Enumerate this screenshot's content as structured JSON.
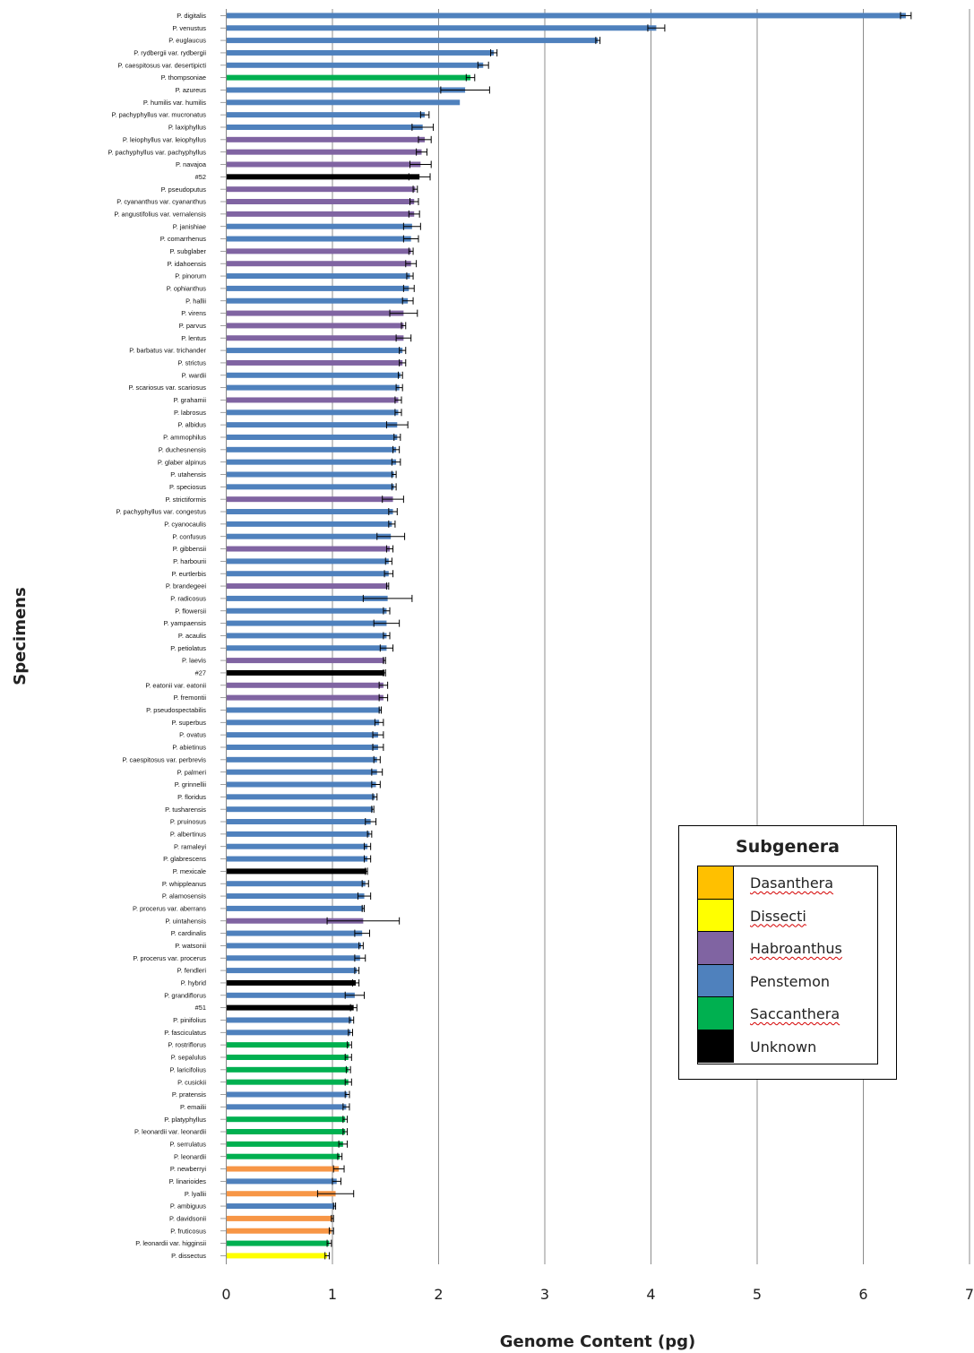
{
  "chart_data": {
    "type": "bar",
    "orientation": "horizontal",
    "xlabel": "Genome Content (pg)",
    "ylabel": "Specimens",
    "xlim": [
      0,
      7
    ],
    "x_ticks": [
      "0",
      "1",
      "2",
      "3",
      "4",
      "5",
      "6",
      "7"
    ],
    "grid": "vertical",
    "error_bars": true,
    "legend": {
      "title": "Subgenera",
      "placement": "lower-right",
      "entries": [
        {
          "name": "Dasanthera",
          "color": "#f79646"
        },
        {
          "name": "Dissecti",
          "color": "#ffff00"
        },
        {
          "name": "Habroanthus",
          "color": "#8064a2"
        },
        {
          "name": "Penstemon",
          "color": "#4f81bd"
        },
        {
          "name": "Saccanthera",
          "color": "#00b050"
        },
        {
          "name": "Unknown",
          "color": "#000000"
        }
      ]
    },
    "categories": [
      "P. digitalis",
      "P. venustus",
      "P. euglaucus",
      "P. rydbergii var. rydbergii",
      "P. caespitosus var. desertipicti",
      "P. thompsoniae",
      "P. azureus",
      "P. humilis var. humilis",
      "P. pachyphyllus var. mucronatus",
      "P. laxiphyllus",
      "P. leiophyllus var. leiophyllus",
      "P. pachyphyllus var. pachyphyllus",
      "P. navajoa",
      "#52",
      "P. pseudoputus",
      "P. cyananthus var. cyananthus",
      "P. angustifolius var. vernalensis",
      "P. janishiae",
      "P. comarrhenus",
      "P. subglaber",
      "P. idahoensis",
      "P. pinorum",
      "P. ophianthus",
      "P. hallii",
      "P. virens",
      "P. parvus",
      "P. lentus",
      "P. barbatus var. trichander",
      "P. strictus",
      "P. wardii",
      "P. scariosus var. scariosus",
      "P. grahamii",
      "P. labrosus",
      "P. albidus",
      "P. ammophilus",
      "P. duchesnensis",
      "P. glaber alpinus",
      "P. utahensis",
      "P. speciosus",
      "P. strictiformis",
      "P. pachyphyllus var. congestus",
      "P. cyanocaulis",
      "P. confusus",
      "P. gibbensii",
      "P. harbourii",
      "P. eurtlerbis",
      "P. brandegeei",
      "P. radicosus",
      "P. flowersii",
      "P. yampaensis",
      "P. acaulis",
      "P. petiolatus",
      "P. laevis",
      "#27",
      "P. eatonii var. eatonii",
      "P. fremontii",
      "P. pseudospectabilis",
      "P. superbus",
      "P. ovatus",
      "P. abietinus",
      "P. caespitosus var. perbrevis",
      "P. palmeri",
      "P. grinnellii",
      "P. floridus",
      "P. tusharensis",
      "P. pruinosus",
      "P. albertinus",
      "P. ramaleyi",
      "P. glabrescens",
      "P. mexicale",
      "P. whippleanus",
      "P. alamosensis",
      "P. procerus var. aberrans",
      "P. uintahensis",
      "P. cardinalis",
      "P. watsonii",
      "P. procerus var. procerus",
      "P. fendleri",
      "P. hybrid",
      "P. grandiflorus",
      "#51",
      "P. pinifolius",
      "P. fasciculatus",
      "P. rostriflorus",
      "P. sepalulus",
      "P. laricifolius",
      "P. cusickii",
      "P. pratensis",
      "P. emailii",
      "P. platyphyllus",
      "P. leonardii var. leonardii",
      "P. serrulatus",
      "P. leonardii",
      "P. newberryi",
      "P. linarioides",
      "P. lyallii",
      "P. ambiguus",
      "P. davidsonii",
      "P. fruticosus",
      "P. leonardii var. higginsii",
      "P. dissectus"
    ],
    "values": [
      6.4,
      4.05,
      3.5,
      2.52,
      2.42,
      2.3,
      2.25,
      2.2,
      1.87,
      1.85,
      1.87,
      1.84,
      1.83,
      1.82,
      1.78,
      1.77,
      1.77,
      1.75,
      1.74,
      1.74,
      1.74,
      1.73,
      1.72,
      1.71,
      1.67,
      1.67,
      1.67,
      1.66,
      1.66,
      1.64,
      1.63,
      1.62,
      1.62,
      1.61,
      1.61,
      1.6,
      1.6,
      1.58,
      1.58,
      1.57,
      1.57,
      1.56,
      1.55,
      1.54,
      1.53,
      1.53,
      1.52,
      1.52,
      1.51,
      1.51,
      1.51,
      1.51,
      1.49,
      1.49,
      1.48,
      1.48,
      1.45,
      1.44,
      1.43,
      1.43,
      1.42,
      1.42,
      1.41,
      1.4,
      1.38,
      1.36,
      1.35,
      1.33,
      1.33,
      1.32,
      1.31,
      1.3,
      1.29,
      1.29,
      1.28,
      1.27,
      1.26,
      1.23,
      1.22,
      1.21,
      1.2,
      1.18,
      1.17,
      1.16,
      1.15,
      1.15,
      1.15,
      1.14,
      1.13,
      1.12,
      1.12,
      1.1,
      1.07,
      1.06,
      1.04,
      1.03,
      1.02,
      1.0,
      0.99,
      0.97,
      0.95
    ],
    "errors": [
      0.05,
      0.08,
      0.02,
      0.03,
      0.05,
      0.04,
      0.23,
      0.0,
      0.04,
      0.1,
      0.06,
      0.05,
      0.1,
      0.1,
      0.02,
      0.04,
      0.05,
      0.08,
      0.07,
      0.02,
      0.05,
      0.03,
      0.05,
      0.05,
      0.13,
      0.02,
      0.07,
      0.03,
      0.03,
      0.02,
      0.03,
      0.03,
      0.03,
      0.1,
      0.03,
      0.03,
      0.04,
      0.02,
      0.02,
      0.1,
      0.04,
      0.03,
      0.13,
      0.03,
      0.03,
      0.04,
      0.01,
      0.23,
      0.03,
      0.12,
      0.03,
      0.06,
      0.01,
      0.01,
      0.04,
      0.04,
      0.01,
      0.04,
      0.05,
      0.05,
      0.03,
      0.05,
      0.04,
      0.02,
      0.01,
      0.05,
      0.02,
      0.03,
      0.03,
      0.01,
      0.03,
      0.06,
      0.01,
      0.34,
      0.07,
      0.02,
      0.05,
      0.02,
      0.03,
      0.09,
      0.03,
      0.02,
      0.02,
      0.02,
      0.03,
      0.02,
      0.03,
      0.02,
      0.03,
      0.02,
      0.02,
      0.04,
      0.02,
      0.05,
      0.04,
      0.17,
      0.01,
      0.01,
      0.02,
      0.02,
      0.02
    ],
    "subgenus_by_index": [
      3,
      3,
      3,
      3,
      3,
      4,
      3,
      3,
      3,
      3,
      2,
      2,
      2,
      5,
      2,
      2,
      2,
      3,
      3,
      2,
      2,
      3,
      3,
      3,
      2,
      2,
      2,
      3,
      2,
      3,
      3,
      2,
      3,
      3,
      3,
      3,
      3,
      3,
      3,
      2,
      3,
      3,
      3,
      2,
      3,
      3,
      2,
      3,
      3,
      3,
      3,
      3,
      2,
      5,
      2,
      2,
      3,
      3,
      3,
      3,
      3,
      3,
      3,
      3,
      3,
      3,
      3,
      3,
      3,
      5,
      3,
      3,
      3,
      2,
      3,
      3,
      3,
      3,
      5,
      3,
      5,
      3,
      3,
      4,
      4,
      4,
      4,
      3,
      3,
      4,
      4,
      4,
      4,
      0,
      3,
      0,
      3,
      0,
      0,
      4,
      1
    ]
  }
}
